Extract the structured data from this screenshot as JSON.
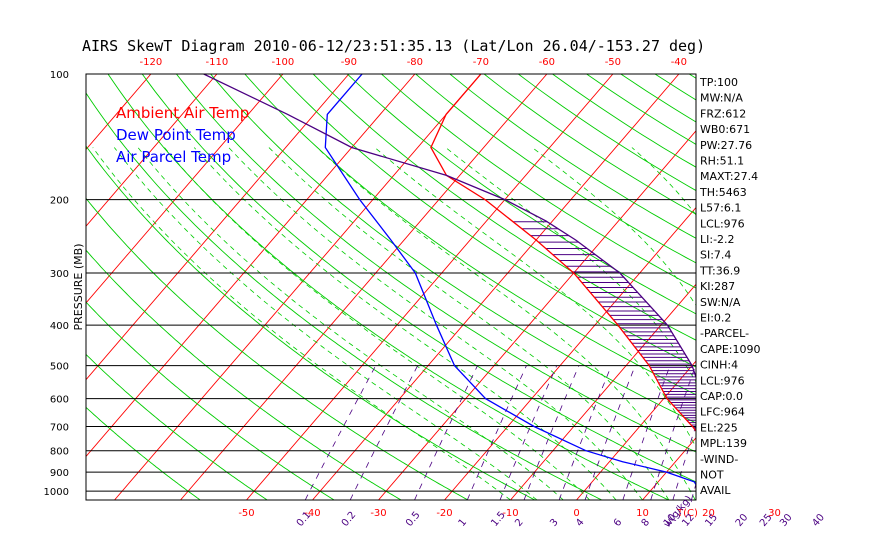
{
  "chart_data": {
    "type": "skewt",
    "title": "AIRS SkewT Diagram 2010-06-12/23:51:35.13 (Lat/Lon 26.04/-153.27 deg)",
    "ylabel": "PRESSURE (MB)",
    "xlabel": "T(C)",
    "mixing_ratio_unit": "w(g/kg)",
    "pressure_ticks": [
      100,
      200,
      300,
      400,
      500,
      600,
      700,
      800,
      900,
      1000
    ],
    "pressure_range": [
      100,
      1050
    ],
    "bottom_temp_ticks": [
      -50,
      -40,
      -30,
      -20,
      -10,
      0,
      10,
      20,
      30
    ],
    "top_temp_ticks": [
      -120,
      -110,
      -100,
      -90,
      -80,
      -70,
      -60,
      -50,
      -40
    ],
    "mixing_ratio_labels": [
      "0.1",
      "0.2",
      "0.5",
      "1",
      "1.5",
      "2",
      "3",
      "4",
      "6",
      "8",
      "10",
      "12",
      "15",
      "20",
      "25",
      "30",
      "40"
    ],
    "legend": [
      {
        "name": "Ambient Air Temp",
        "color": "#ff0000"
      },
      {
        "name": "Dew Point Temp",
        "color": "#0000ff"
      },
      {
        "name": "Air Parcel Temp",
        "color": "#0000ff"
      }
    ],
    "colors": {
      "temperature": "#ff0000",
      "dewpoint": "#0000ff",
      "parcel": "#4b0082",
      "isotherm": "#ff0000",
      "dry_adiabat": "#00cc00",
      "moist_adiabat": "#00cc00",
      "mixing_ratio": "#4b0082",
      "cape_hatch": "#4b0082"
    },
    "series": [
      {
        "name": "Ambient Air Temp",
        "points": [
          [
            1013,
            22.5
          ],
          [
            1000,
            21
          ],
          [
            975,
            19.5
          ],
          [
            950,
            19.5
          ],
          [
            925,
            19.3
          ],
          [
            900,
            18.8
          ],
          [
            850,
            16
          ],
          [
            800,
            14
          ],
          [
            700,
            8
          ],
          [
            600,
            0.5
          ],
          [
            500,
            -6.5
          ],
          [
            400,
            -16.5
          ],
          [
            300,
            -30
          ],
          [
            250,
            -40
          ],
          [
            200,
            -53
          ],
          [
            175,
            -62
          ],
          [
            150,
            -68
          ],
          [
            125,
            -70
          ],
          [
            100,
            -70
          ]
        ]
      },
      {
        "name": "Dew Point Temp",
        "points": [
          [
            1013,
            18
          ],
          [
            1000,
            17.5
          ],
          [
            950,
            15.5
          ],
          [
            900,
            10
          ],
          [
            850,
            2
          ],
          [
            800,
            -5
          ],
          [
            700,
            -16
          ],
          [
            600,
            -27
          ],
          [
            500,
            -36
          ],
          [
            400,
            -44
          ],
          [
            300,
            -54
          ],
          [
            250,
            -62
          ],
          [
            200,
            -72
          ],
          [
            150,
            -84
          ],
          [
            125,
            -88
          ],
          [
            100,
            -88
          ]
        ]
      },
      {
        "name": "Air Parcel Temp",
        "points": [
          [
            1013,
            22.5
          ],
          [
            976,
            17.5
          ],
          [
            900,
            17.1
          ],
          [
            850,
            15.5
          ],
          [
            800,
            13.9
          ],
          [
            700,
            10.5
          ],
          [
            600,
            6
          ],
          [
            500,
            0
          ],
          [
            400,
            -9
          ],
          [
            300,
            -23
          ],
          [
            250,
            -34
          ],
          [
            225,
            -41
          ],
          [
            200,
            -50
          ],
          [
            175,
            -62
          ],
          [
            150,
            -80
          ],
          [
            125,
            -94
          ],
          [
            100,
            -112
          ]
        ]
      }
    ],
    "indices": [
      "TP:100",
      "MW:N/A",
      "FRZ:612",
      "WB0:671",
      "PW:27.76",
      "RH:51.1",
      "MAXT:27.4",
      "TH:5463",
      "L57:6.1",
      "LCL:976",
      "LI:-2.2",
      "SI:7.4",
      "TT:36.9",
      "KI:287",
      "SW:N/A",
      "EI:0.2",
      "-PARCEL-",
      "CAPE:1090",
      "CINH:4",
      "LCL:976",
      "CAP:0.0",
      "LFC:964",
      "EL:225",
      "MPL:139",
      "-WIND-",
      "NOT",
      "AVAIL"
    ]
  }
}
